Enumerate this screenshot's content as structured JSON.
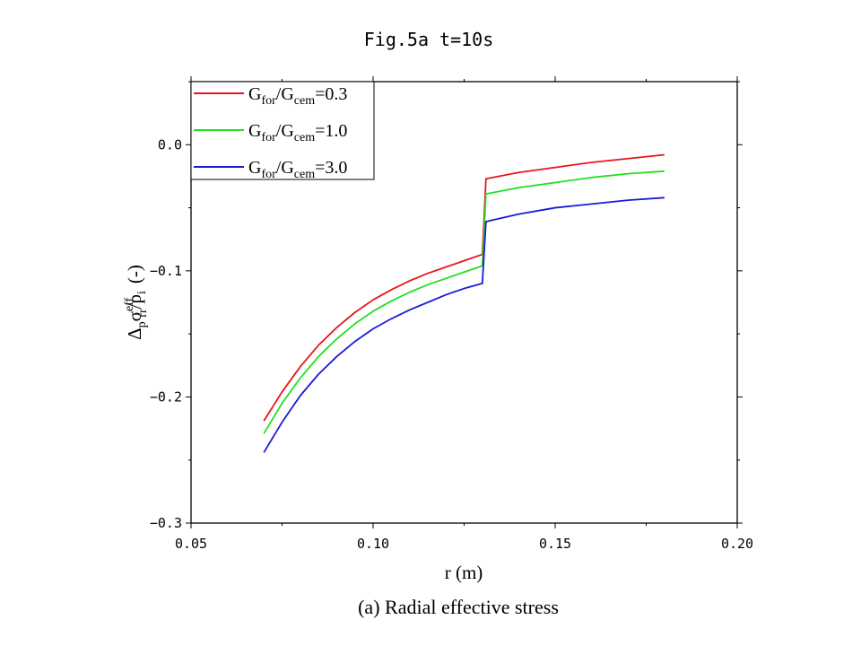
{
  "chart_data": {
    "type": "line",
    "title": "Fig.5a t=10s",
    "caption": "(a) Radial effective stress",
    "xlabel": "r (m)",
    "ylabel": "Δpσrreff/pi (-)",
    "ylabel_parts": {
      "delta": "Δ",
      "delta_sub": "p",
      "sigma": "σ",
      "sigma_sub": "rr",
      "sigma_sup": "eff",
      "slash": "/",
      "p": "p",
      "p_sub": "i",
      "unit": "(-)"
    },
    "xlim": [
      0.05,
      0.2
    ],
    "ylim": [
      -0.3,
      0.05
    ],
    "x_ticks": [
      0.05,
      0.1,
      0.15,
      0.2
    ],
    "x_tick_labels": [
      "0.05",
      "0.10",
      "0.15",
      "0.20"
    ],
    "y_ticks": [
      -0.3,
      -0.2,
      -0.1,
      0.0
    ],
    "y_tick_labels": [
      "−0.3",
      "−0.2",
      "−0.1",
      "0.0"
    ],
    "legend_position": "top-left",
    "series": [
      {
        "name": "Gfor/Gcem=0.3",
        "label_parts": {
          "g1": "G",
          "s1": "for",
          "slash": "/",
          "g2": "G",
          "s2": "cem",
          "value": "=0.3"
        },
        "color": "#e8141c",
        "x": [
          0.07,
          0.075,
          0.08,
          0.085,
          0.09,
          0.095,
          0.1,
          0.105,
          0.11,
          0.115,
          0.12,
          0.125,
          0.13,
          0.131,
          0.14,
          0.15,
          0.16,
          0.17,
          0.18
        ],
        "y": [
          -0.219,
          -0.196,
          -0.176,
          -0.159,
          -0.145,
          -0.133,
          -0.123,
          -0.115,
          -0.108,
          -0.102,
          -0.097,
          -0.092,
          -0.087,
          -0.027,
          -0.022,
          -0.018,
          -0.014,
          -0.011,
          -0.008
        ]
      },
      {
        "name": "Gfor/Gcem=1.0",
        "label_parts": {
          "g1": "G",
          "s1": "for",
          "slash": "/",
          "g2": "G",
          "s2": "cem",
          "value": "=1.0"
        },
        "color": "#22e01e",
        "x": [
          0.07,
          0.075,
          0.08,
          0.085,
          0.09,
          0.095,
          0.1,
          0.105,
          0.11,
          0.115,
          0.12,
          0.125,
          0.13,
          0.131,
          0.14,
          0.15,
          0.16,
          0.17,
          0.18
        ],
        "y": [
          -0.229,
          -0.205,
          -0.185,
          -0.168,
          -0.154,
          -0.142,
          -0.132,
          -0.124,
          -0.117,
          -0.111,
          -0.106,
          -0.101,
          -0.096,
          -0.039,
          -0.034,
          -0.03,
          -0.026,
          -0.023,
          -0.021
        ]
      },
      {
        "name": "Gfor/Gcem=3.0",
        "label_parts": {
          "g1": "G",
          "s1": "for",
          "slash": "/",
          "g2": "G",
          "s2": "cem",
          "value": "=3.0"
        },
        "color": "#1a1ad8",
        "x": [
          0.07,
          0.075,
          0.08,
          0.085,
          0.09,
          0.095,
          0.1,
          0.105,
          0.11,
          0.115,
          0.12,
          0.125,
          0.13,
          0.131,
          0.14,
          0.15,
          0.16,
          0.17,
          0.18
        ],
        "y": [
          -0.244,
          -0.22,
          -0.199,
          -0.182,
          -0.168,
          -0.156,
          -0.146,
          -0.138,
          -0.131,
          -0.125,
          -0.119,
          -0.114,
          -0.11,
          -0.061,
          -0.055,
          -0.05,
          -0.047,
          -0.044,
          -0.042
        ]
      }
    ]
  }
}
